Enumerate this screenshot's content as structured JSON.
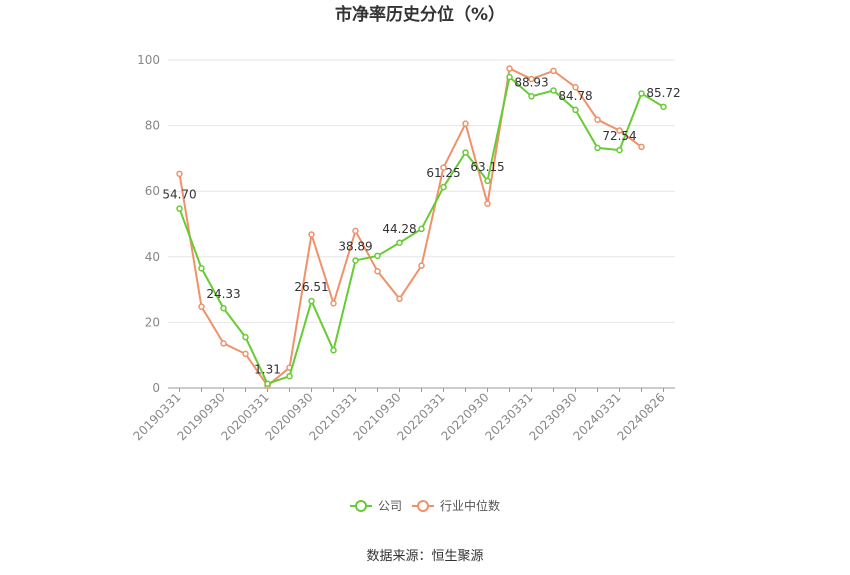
{
  "chart_data": {
    "type": "line",
    "title": "市净率历史分位（%）",
    "xlabel": "",
    "ylabel": "",
    "ylim": [
      0,
      100
    ],
    "yticks": [
      0,
      20,
      40,
      60,
      80,
      100
    ],
    "x_tick_labels": [
      "20190331",
      "20190930",
      "20200331",
      "20200930",
      "20210331",
      "20210930",
      "20220331",
      "20220930",
      "20230331",
      "20230930",
      "20240331",
      "20240826"
    ],
    "grid": true,
    "legend": "bottom-center",
    "series": [
      {
        "name": "公司",
        "color": "#66cc33",
        "values": [
          54.7,
          36.5,
          24.33,
          15.5,
          1.31,
          3.6,
          26.51,
          11.5,
          38.89,
          40.3,
          44.28,
          48.5,
          61.25,
          71.8,
          63.15,
          94.8,
          88.93,
          90.7,
          84.78,
          73.2,
          72.54,
          89.8,
          85.72
        ],
        "labels": [
          "54.70",
          "",
          "24.33",
          "",
          "1.31",
          "",
          "26.51",
          "",
          "38.89",
          "",
          "44.28",
          "",
          "61.25",
          "",
          "63.15",
          "",
          "88.93",
          "",
          "84.78",
          "",
          "72.54",
          "",
          "85.72"
        ]
      },
      {
        "name": "行业中位数",
        "color": "#f0916a",
        "values": [
          65.3,
          24.8,
          13.6,
          10.4,
          0.7,
          6.2,
          46.8,
          25.8,
          47.9,
          35.6,
          27.2,
          37.3,
          67.2,
          80.6,
          56.2,
          97.4,
          94.2,
          96.7,
          91.7,
          81.8,
          78.5,
          73.5,
          null
        ]
      }
    ]
  },
  "source_text": "数据来源：恒生聚源"
}
